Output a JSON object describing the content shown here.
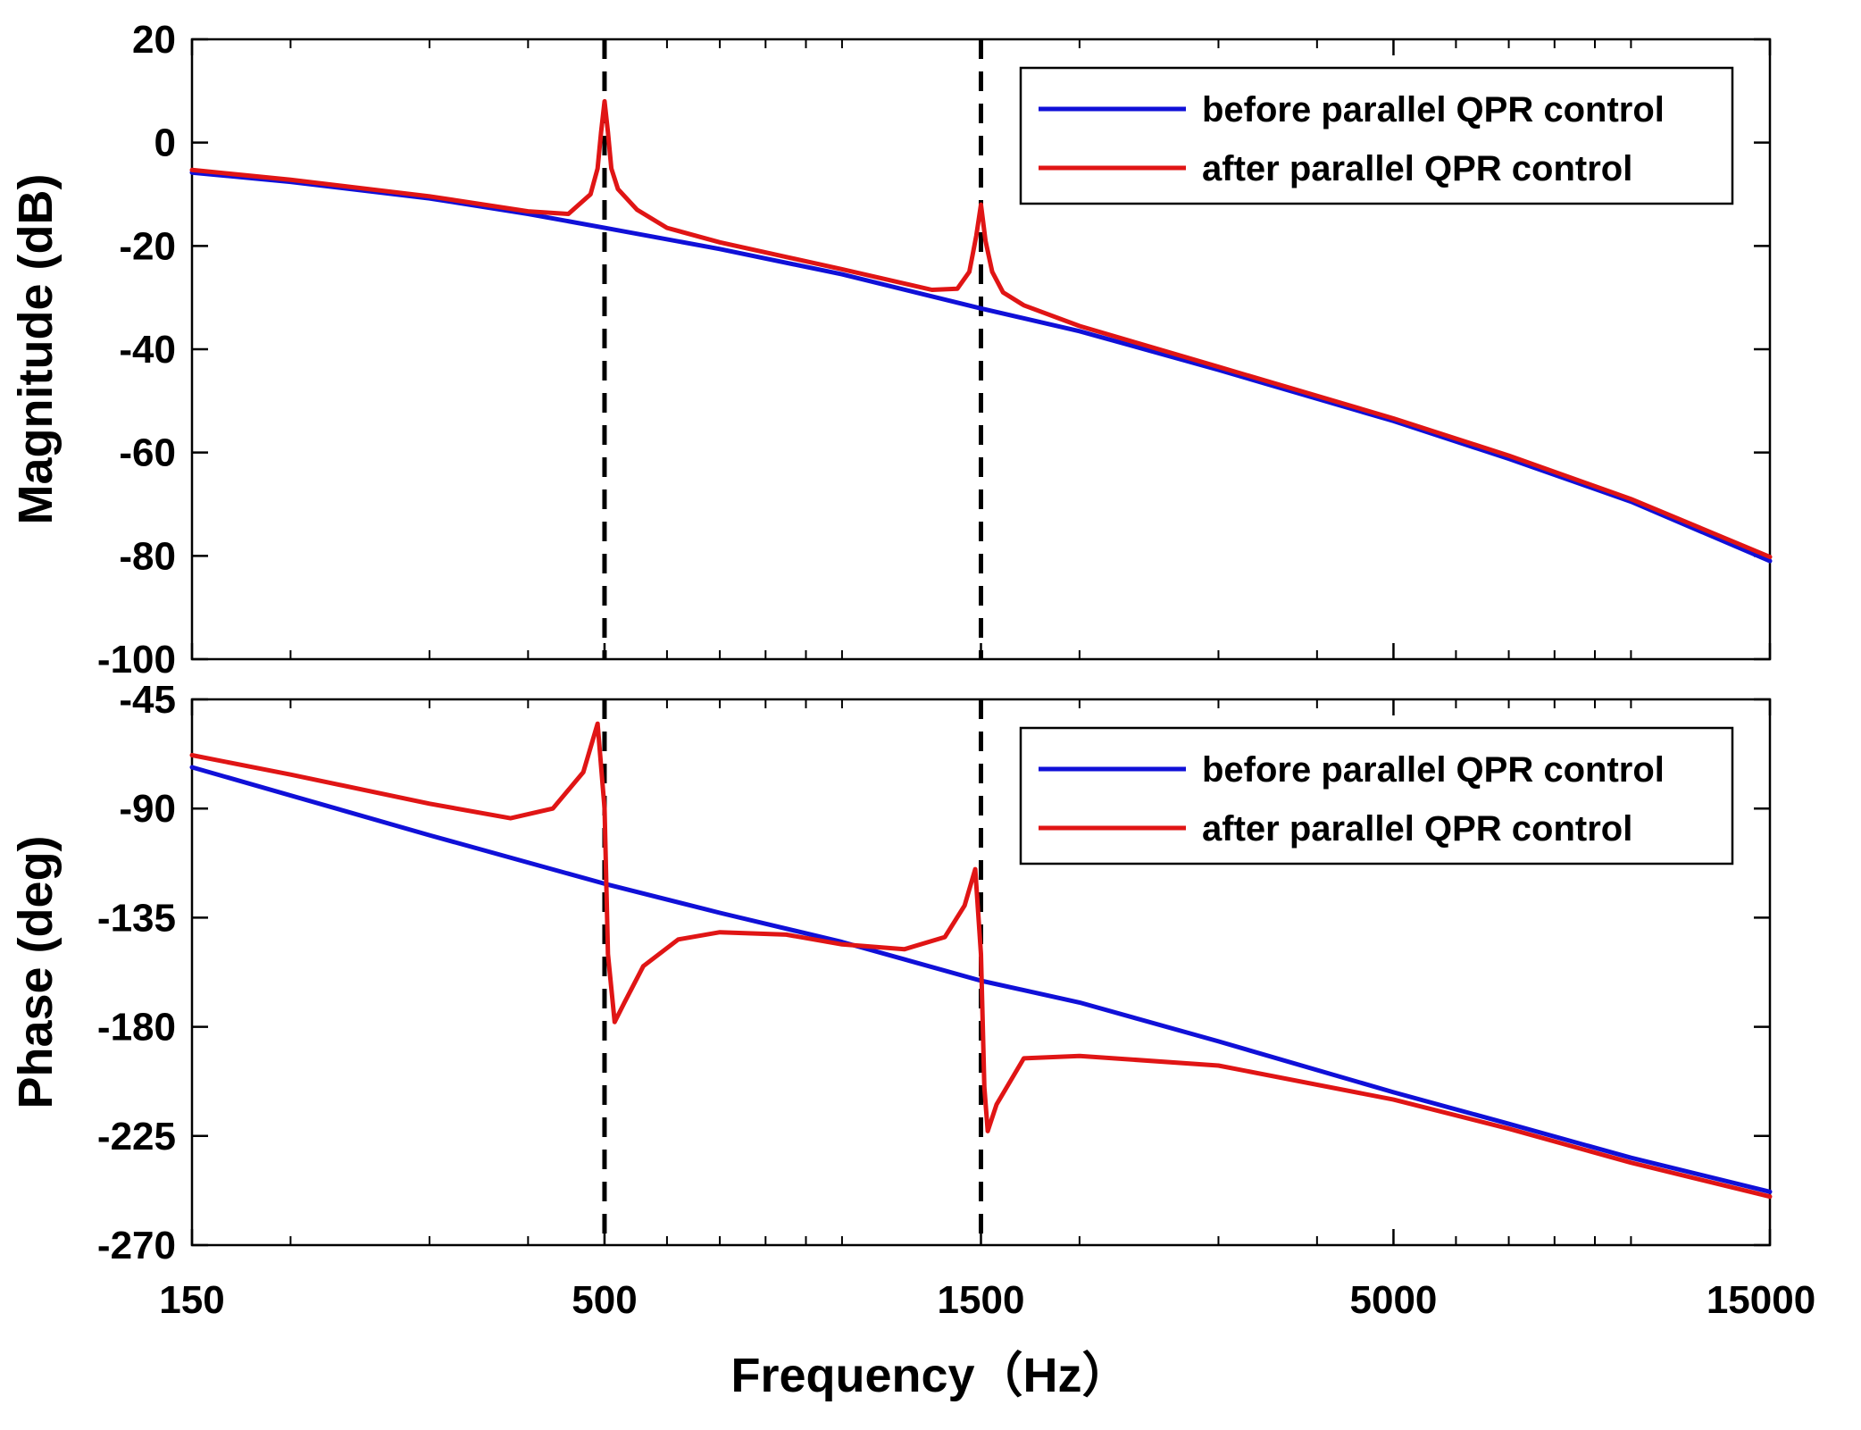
{
  "chart_data": {
    "type": "line",
    "xlabel": "Frequency（Hz）",
    "xscale": "log",
    "x_ticks": [
      150,
      500,
      1500,
      5000,
      15000
    ],
    "x_tick_labels": [
      "150",
      "500",
      "1500",
      "5000",
      "15000"
    ],
    "xlim": [
      150,
      15000
    ],
    "markers": [
      500,
      1500
    ],
    "subplots": [
      {
        "name": "magnitude",
        "ylabel": "Magnitude (dB)",
        "ylim": [
          -100,
          20
        ],
        "y_ticks": [
          20,
          0,
          -20,
          -40,
          -60,
          -80,
          -100
        ],
        "y_tick_labels": [
          "20",
          "0",
          "-20",
          "-40",
          "-60",
          "-80",
          "-100"
        ],
        "legend": "top-right",
        "series": [
          {
            "name": "before parallel QPR control",
            "color": "#1010d8",
            "x": [
              150,
              200,
              300,
              400,
              500,
              700,
              1000,
              1500,
              2000,
              3000,
              5000,
              7000,
              10000,
              15000
            ],
            "y": [
              -5.8,
              -7.6,
              -10.8,
              -13.8,
              -16.5,
              -20.6,
              -25.5,
              -32.1,
              -36.5,
              -44.0,
              -53.9,
              -61.2,
              -69.5,
              -81.0
            ]
          },
          {
            "name": "after parallel QPR control",
            "color": "#e01515",
            "x": [
              150,
              200,
              300,
              400,
              450,
              480,
              490,
              495,
              500,
              505,
              510,
              520,
              550,
              600,
              700,
              1000,
              1300,
              1400,
              1450,
              1480,
              1500,
              1520,
              1550,
              1600,
              1700,
              2000,
              3000,
              5000,
              7000,
              10000,
              15000
            ],
            "y": [
              -5.3,
              -7.2,
              -10.4,
              -13.3,
              -13.8,
              -10.0,
              -5.0,
              2.0,
              8.0,
              2.0,
              -5.0,
              -9.0,
              -13.0,
              -16.5,
              -19.3,
              -24.5,
              -28.5,
              -28.3,
              -25.0,
              -18.0,
              -12.0,
              -19.0,
              -25.0,
              -29.0,
              -31.5,
              -35.5,
              -43.4,
              -53.4,
              -60.6,
              -69.0,
              -80.2
            ]
          }
        ]
      },
      {
        "name": "phase",
        "ylabel": "Phase (deg)",
        "ylim": [
          -270,
          -45
        ],
        "y_ticks": [
          -45,
          -90,
          -135,
          -180,
          -225,
          -270
        ],
        "y_tick_labels": [
          "-45",
          "-90",
          "-135",
          "-180",
          "-225",
          "-270"
        ],
        "legend": "top-right",
        "series": [
          {
            "name": "before parallel QPR control",
            "color": "#1010d8",
            "x": [
              150,
              300,
              500,
              700,
              1000,
              1500,
              2000,
              3000,
              5000,
              7000,
              10000,
              15000
            ],
            "y": [
              -73,
              -101,
              -121,
              -133,
              -145,
              -161,
              -170,
              -186,
              -207,
              -220,
              -234,
              -248
            ]
          },
          {
            "name": "after parallel QPR control",
            "color": "#e01515",
            "x": [
              150,
              200,
              300,
              380,
              430,
              470,
              490,
              500,
              505,
              515,
              530,
              560,
              620,
              700,
              850,
              1000,
              1200,
              1350,
              1430,
              1475,
              1500,
              1515,
              1530,
              1570,
              1700,
              2000,
              3000,
              5000,
              7000,
              10000,
              15000
            ],
            "y": [
              -68,
              -76,
              -88,
              -94,
              -90,
              -75,
              -55,
              -90,
              -150,
              -178,
              -170,
              -155,
              -144,
              -141,
              -142,
              -146,
              -148,
              -143,
              -130,
              -115,
              -150,
              -205,
              -223,
              -212,
              -193,
              -192,
              -196,
              -210,
              -222,
              -236,
              -250
            ]
          }
        ]
      }
    ]
  }
}
